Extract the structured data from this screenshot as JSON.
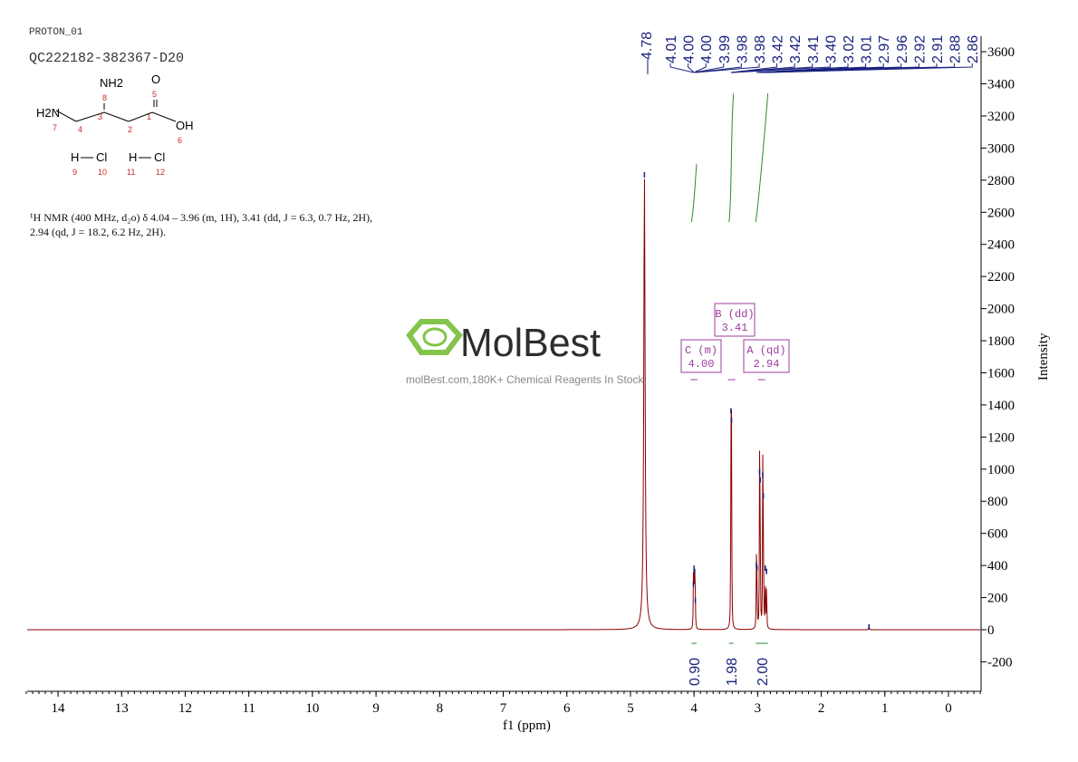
{
  "header": {
    "experiment": "PROTON_01",
    "sample": "QC222182-382367-D20"
  },
  "structure": {
    "atoms": [
      "NH2",
      "O",
      "H2N",
      "OH",
      "H",
      "Cl",
      "H",
      "Cl"
    ],
    "numbers": [
      "8",
      "5",
      "3",
      "1",
      "7",
      "4",
      "2",
      "6",
      "9",
      "10",
      "11",
      "12"
    ]
  },
  "description": "¹H NMR (400 MHz, d₂o) δ 4.04 – 3.96 (m, 1H), 3.41 (dd, J = 6.3, 0.7 Hz, 2H), 2.94 (qd, J = 18.2, 6.2 Hz, 2H).",
  "watermark": {
    "logo": "MolBest",
    "tagline": "molBest.com,180K+ Chemical Reagents In Stock.",
    "color": "#7dc242"
  },
  "chart_data": {
    "type": "line",
    "xlabel": "f1 (ppm)",
    "ylabel": "Intensity",
    "xlim": [
      14.5,
      -0.5
    ],
    "ylim": [
      -300,
      3700
    ],
    "xticks": [
      14,
      13,
      12,
      11,
      10,
      9,
      8,
      7,
      6,
      5,
      4,
      3,
      2,
      1,
      0
    ],
    "yticks": [
      -200,
      0,
      200,
      400,
      600,
      800,
      1000,
      1200,
      1400,
      1600,
      1800,
      2000,
      2200,
      2400,
      2600,
      2800,
      3000,
      3200,
      3400,
      3600
    ],
    "peaks": [
      {
        "ppm": 4.78,
        "h": 2850
      },
      {
        "ppm": 4.01,
        "h": 300
      },
      {
        "ppm": 4.0,
        "h": 400
      },
      {
        "ppm": 3.99,
        "h": 380
      },
      {
        "ppm": 3.98,
        "h": 200
      },
      {
        "ppm": 3.42,
        "h": 1380
      },
      {
        "ppm": 3.41,
        "h": 1320
      },
      {
        "ppm": 3.02,
        "h": 420
      },
      {
        "ppm": 3.01,
        "h": 400
      },
      {
        "ppm": 2.97,
        "h": 1000
      },
      {
        "ppm": 2.96,
        "h": 950
      },
      {
        "ppm": 2.92,
        "h": 980
      },
      {
        "ppm": 2.91,
        "h": 850
      },
      {
        "ppm": 2.88,
        "h": 400
      },
      {
        "ppm": 2.86,
        "h": 380
      },
      {
        "ppm": 1.25,
        "h": 35
      }
    ],
    "peak_labels_main": [
      "4.78"
    ],
    "peak_labels": [
      "4.01",
      "4.00",
      "4.00",
      "3.99",
      "3.98",
      "3.98",
      "3.42",
      "3.42",
      "3.41",
      "3.40",
      "3.02",
      "3.01",
      "2.97",
      "2.96",
      "2.92",
      "2.91",
      "2.88",
      "2.86"
    ],
    "multiplets": [
      {
        "label": "C (m)",
        "shift": "4.00",
        "ppm": 4.0
      },
      {
        "label": "B (dd)",
        "shift": "3.41",
        "ppm": 3.41
      },
      {
        "label": "A (qd)",
        "shift": "2.94",
        "ppm": 2.94
      }
    ],
    "integrals": [
      {
        "value": "0.90",
        "from": 4.04,
        "to": 3.96
      },
      {
        "value": "1.98",
        "from": 3.45,
        "to": 3.38
      },
      {
        "value": "2.00",
        "from": 3.03,
        "to": 2.84
      }
    ],
    "colors": {
      "spectrum": "#8b0000",
      "labels": "#1a237e",
      "integral": "#2e8b2e",
      "multiplet": "#9c3d9c"
    }
  }
}
